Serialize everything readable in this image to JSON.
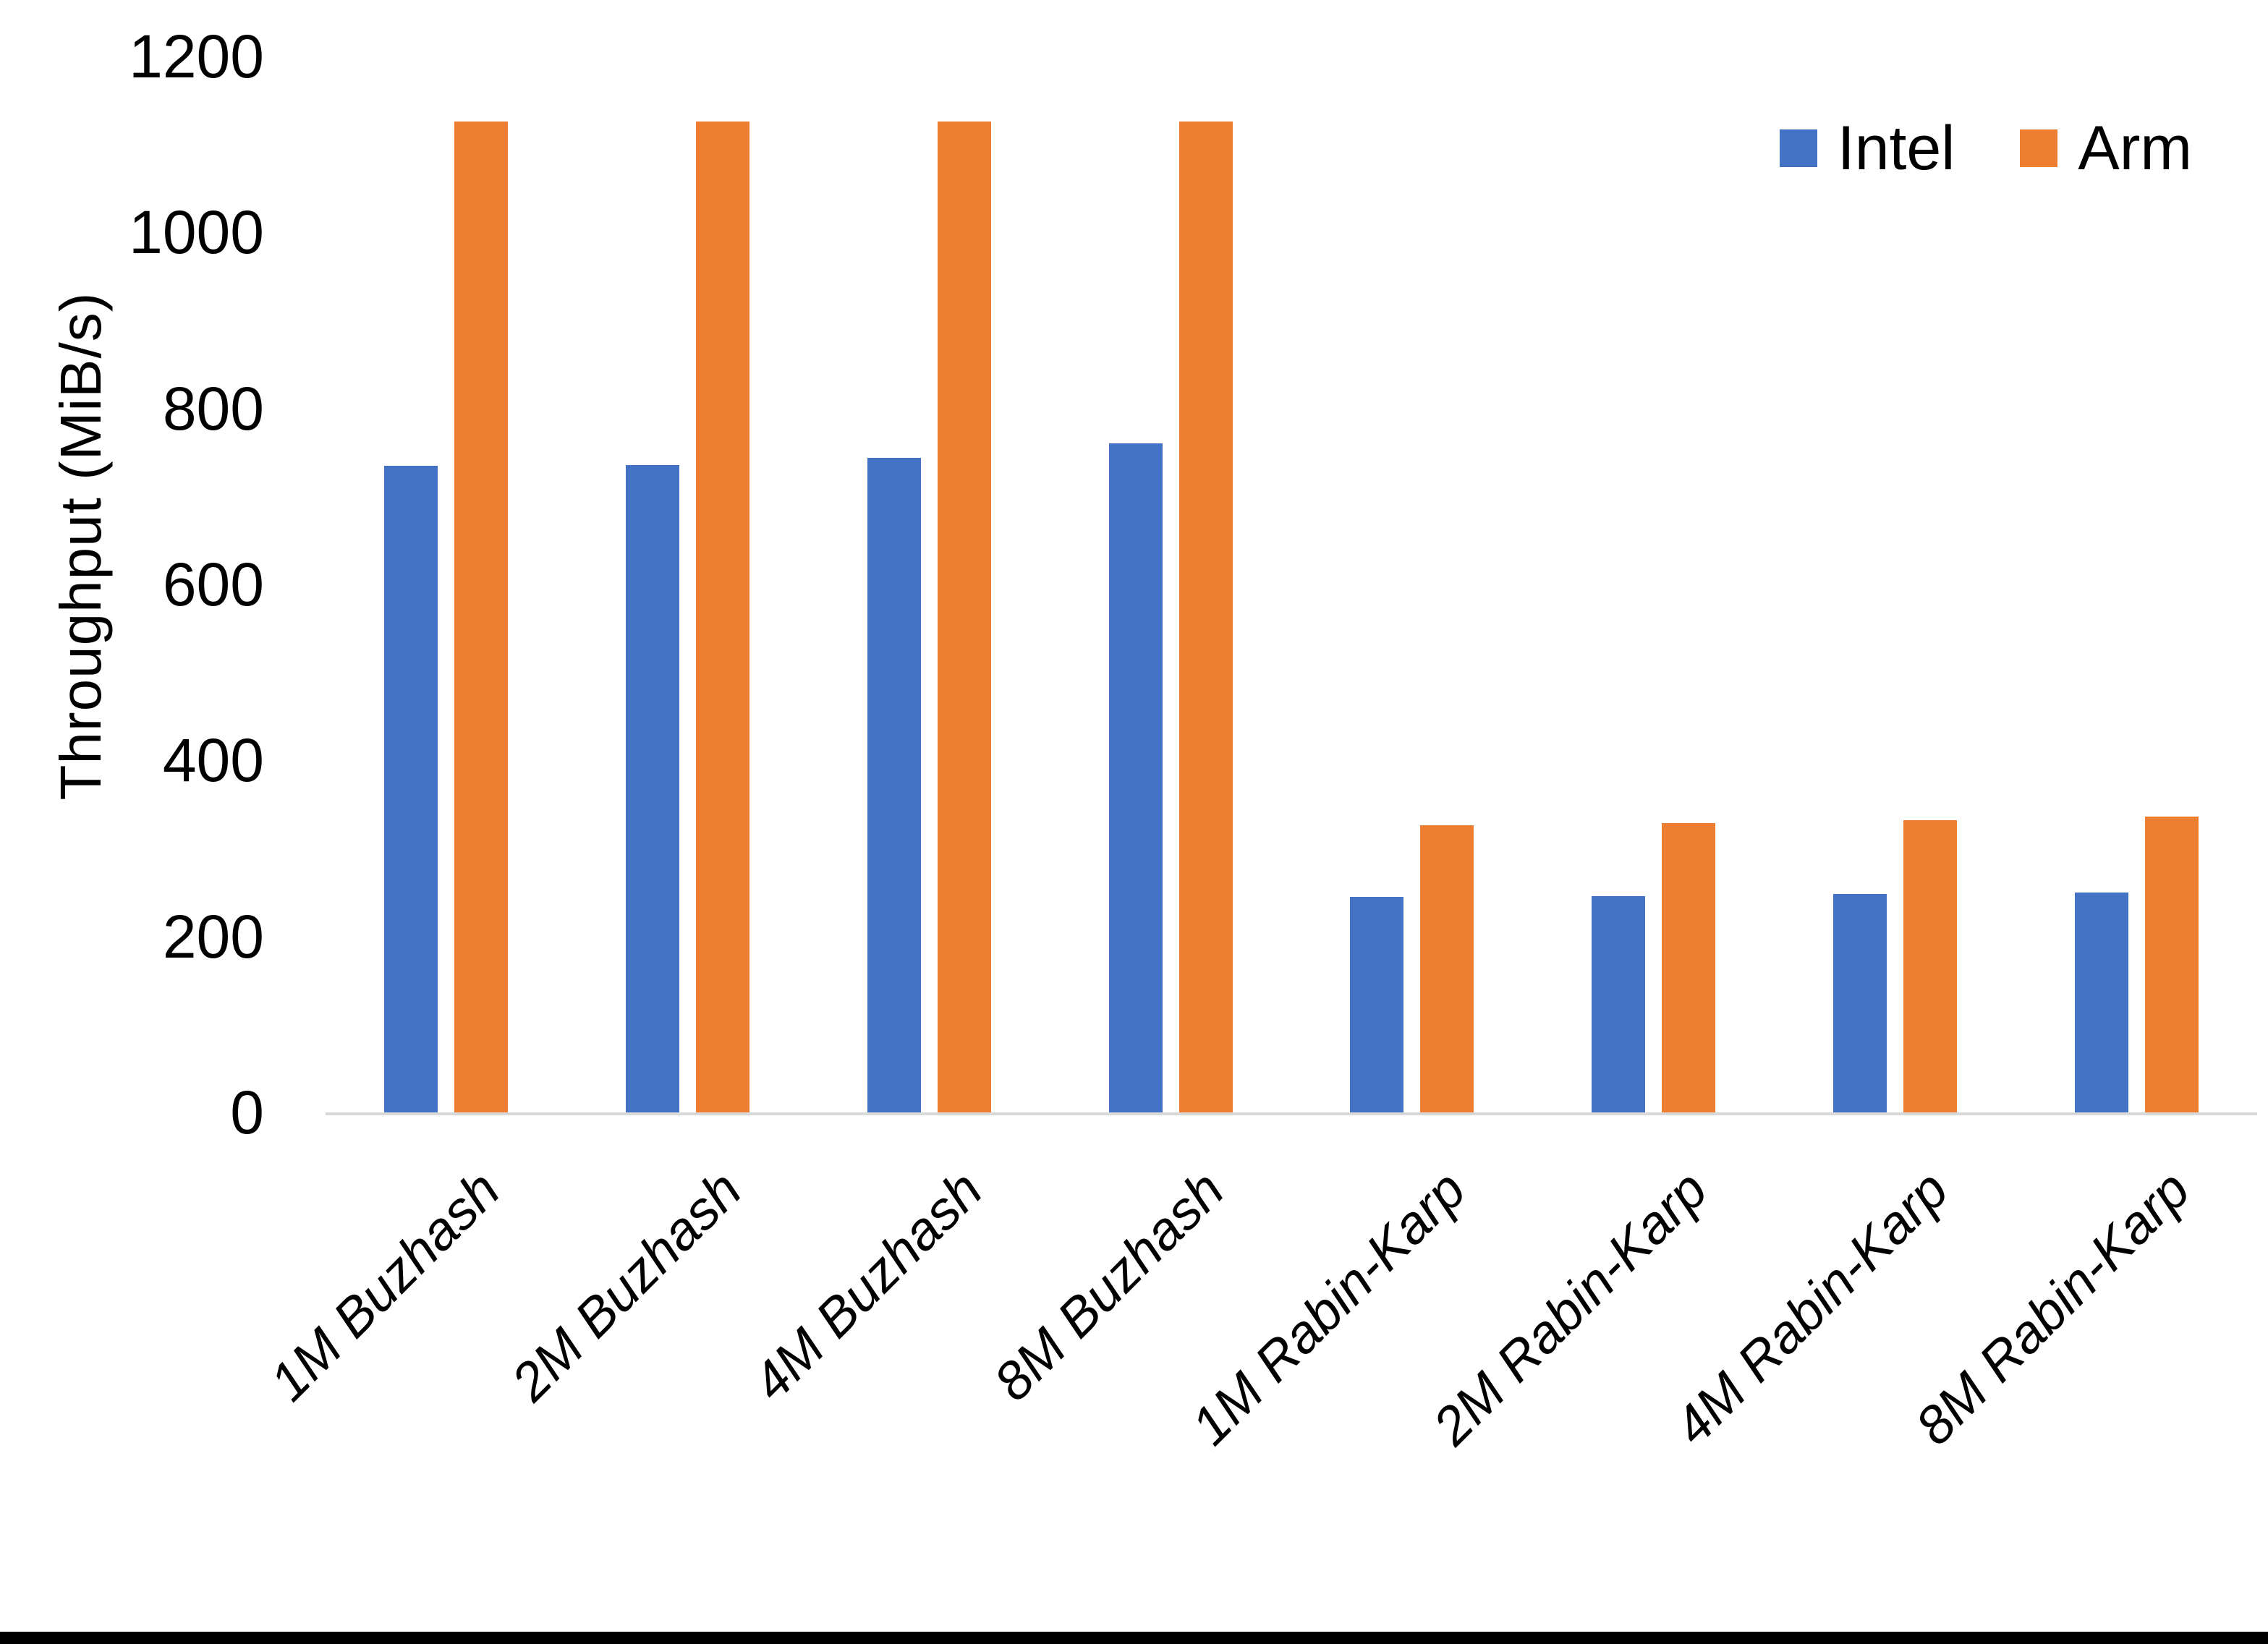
{
  "chart_data": {
    "type": "bar",
    "title": "",
    "xlabel": "",
    "ylabel": "Throughput (MiB/s)",
    "categories": [
      "1M Buzhash",
      "2M Buzhash",
      "4M Buzhash",
      "8M Buzhash",
      "1M Rabin-Karp",
      "2M Rabin-Karp",
      "4M Rabin-Karp",
      "8M Rabin-Karp"
    ],
    "series": [
      {
        "name": "Intel",
        "color": "#4472C4",
        "values": [
          735,
          736,
          744,
          760,
          245,
          246,
          248,
          250
        ]
      },
      {
        "name": "Arm",
        "color": "#ED7D31",
        "values": [
          1126,
          1126,
          1126,
          1126,
          326,
          329,
          332,
          336
        ]
      }
    ],
    "ylim": [
      0,
      1200
    ],
    "yticks": [
      0,
      200,
      400,
      600,
      800,
      1000,
      1200
    ],
    "grid": "off",
    "legend_position": "top-right",
    "axis_line_color": "#D9D9D9",
    "text_color": "#000000",
    "background_color": "#FFFFFF"
  }
}
